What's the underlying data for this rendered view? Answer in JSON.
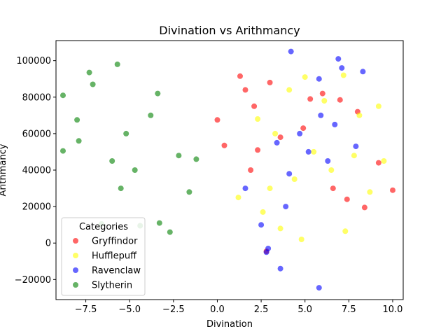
{
  "chart_data": {
    "type": "scatter",
    "title": "Divination vs Arithmancy",
    "xlabel": "Divination",
    "ylabel": "Arithmancy",
    "xlim": [
      -9.2,
      10.6
    ],
    "ylim": [
      -31000,
      111000
    ],
    "xticks": [
      -7.5,
      -5.0,
      -2.5,
      0.0,
      2.5,
      5.0,
      7.5,
      10.0
    ],
    "xtick_labels": [
      "−7.5",
      "−5.0",
      "−2.5",
      "0.0",
      "2.5",
      "5.0",
      "7.5",
      "10.0"
    ],
    "yticks": [
      -20000,
      0,
      20000,
      40000,
      60000,
      80000,
      100000
    ],
    "ytick_labels": [
      "−20000",
      "0",
      "20000",
      "40000",
      "60000",
      "80000",
      "100000"
    ],
    "grid": false,
    "legend": {
      "title": "Categories",
      "placement": "lower-left"
    },
    "series": [
      {
        "name": "Gryffindor",
        "color": "#ff0000",
        "x": [
          1.3,
          1.6,
          2.1,
          3.0,
          5.3,
          6.0,
          7.0,
          8.0,
          9.2,
          10.0,
          8.4,
          7.4,
          2.8,
          0.0,
          0.4,
          2.3,
          3.6,
          4.9,
          6.6,
          1.9
        ],
        "y": [
          91500,
          84000,
          75000,
          88000,
          79000,
          82000,
          78500,
          72000,
          44000,
          29000,
          19500,
          24000,
          -4500,
          67500,
          53500,
          51000,
          58000,
          63000,
          30000,
          40000
        ]
      },
      {
        "name": "Hufflepuff",
        "color": "#ffff00",
        "x": [
          1.2,
          2.3,
          3.0,
          4.1,
          5.0,
          6.1,
          7.2,
          8.1,
          9.2,
          9.5,
          8.7,
          7.3,
          3.6,
          4.8,
          2.6,
          5.5,
          6.5,
          3.3,
          7.8,
          4.4
        ],
        "y": [
          25000,
          68000,
          30000,
          84000,
          91000,
          78000,
          92000,
          70000,
          75000,
          45000,
          28000,
          6500,
          8000,
          2000,
          17000,
          50000,
          40000,
          60000,
          48000,
          35000
        ]
      },
      {
        "name": "Ravenclaw",
        "color": "#0000ff",
        "x": [
          4.2,
          6.9,
          7.1,
          5.8,
          8.3,
          2.9,
          2.8,
          3.6,
          5.8,
          7.9,
          1.6,
          2.5,
          4.7,
          5.9,
          6.3,
          4.1,
          3.4,
          5.2,
          6.7,
          3.9
        ],
        "y": [
          105000,
          101000,
          96000,
          90000,
          94000,
          -3000,
          -5000,
          -14000,
          -24500,
          53000,
          30000,
          10000,
          60000,
          70000,
          45000,
          38000,
          55000,
          50000,
          65000,
          20000
        ]
      },
      {
        "name": "Slytherin",
        "color": "#008000",
        "x": [
          -8.8,
          -7.3,
          -7.1,
          -5.7,
          -3.4,
          -8.0,
          -2.7,
          -1.6,
          -1.2,
          -3.3,
          -4.4,
          -6.6,
          -8.8,
          -7.9,
          -5.2,
          -4.7,
          -6.0,
          -3.8,
          -2.2,
          -5.5
        ],
        "y": [
          81000,
          93500,
          87000,
          98000,
          82000,
          67500,
          6000,
          28000,
          46000,
          11000,
          9500,
          10500,
          50500,
          56000,
          60000,
          40000,
          45000,
          70000,
          48000,
          30000
        ]
      }
    ]
  }
}
